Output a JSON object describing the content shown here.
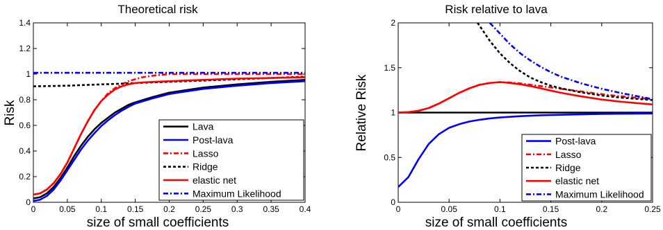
{
  "chart_data": [
    {
      "type": "line",
      "title": "Theoretical risk",
      "xlabel": "size of small coefficients",
      "ylabel": "Risk",
      "xlim": [
        0,
        0.4
      ],
      "ylim": [
        0,
        1.4
      ],
      "xticks": [
        "0",
        "0.05",
        "0.1",
        "0.15",
        "0.2",
        "0.25",
        "0.3",
        "0.35",
        "0.4"
      ],
      "yticks": [
        "0",
        "0.2",
        "0.4",
        "0.6",
        "0.8",
        "1",
        "1.2",
        "1.4"
      ],
      "legend_position": "bottom-right",
      "series": [
        {
          "name": "Lava",
          "color": "#000000",
          "dash": "solid",
          "x": [
            0,
            0.01,
            0.02,
            0.03,
            0.04,
            0.05,
            0.06,
            0.07,
            0.08,
            0.09,
            0.1,
            0.11,
            0.12,
            0.13,
            0.14,
            0.15,
            0.175,
            0.2,
            0.25,
            0.3,
            0.35,
            0.4
          ],
          "y": [
            0.03,
            0.04,
            0.07,
            0.12,
            0.19,
            0.27,
            0.36,
            0.44,
            0.51,
            0.57,
            0.62,
            0.66,
            0.7,
            0.73,
            0.76,
            0.78,
            0.82,
            0.855,
            0.895,
            0.92,
            0.94,
            0.955
          ]
        },
        {
          "name": "Post-lava",
          "color": "#0000ff",
          "dash": "solid",
          "x": [
            0,
            0.01,
            0.02,
            0.03,
            0.04,
            0.05,
            0.06,
            0.07,
            0.08,
            0.09,
            0.1,
            0.11,
            0.12,
            0.13,
            0.14,
            0.15,
            0.175,
            0.2,
            0.25,
            0.3,
            0.35,
            0.4
          ],
          "y": [
            0.01,
            0.02,
            0.05,
            0.1,
            0.17,
            0.25,
            0.33,
            0.41,
            0.48,
            0.54,
            0.595,
            0.64,
            0.68,
            0.715,
            0.745,
            0.77,
            0.81,
            0.845,
            0.885,
            0.91,
            0.93,
            0.945
          ]
        },
        {
          "name": "Lasso",
          "color": "#ff0000",
          "dash": "dashdot",
          "x": [
            0,
            0.01,
            0.02,
            0.03,
            0.04,
            0.05,
            0.06,
            0.07,
            0.08,
            0.09,
            0.1,
            0.11,
            0.12,
            0.13,
            0.14,
            0.15,
            0.16,
            0.18,
            0.2,
            0.25,
            0.3,
            0.35,
            0.4
          ],
          "y": [
            0.06,
            0.07,
            0.1,
            0.15,
            0.22,
            0.31,
            0.42,
            0.53,
            0.63,
            0.72,
            0.79,
            0.85,
            0.89,
            0.92,
            0.945,
            0.96,
            0.975,
            0.99,
            1.0,
            1.0,
            1.0,
            1.0,
            1.0
          ]
        },
        {
          "name": "Ridge",
          "color": "#000000",
          "dash": "dotted",
          "x": [
            0,
            0.025,
            0.05,
            0.075,
            0.1,
            0.125,
            0.15,
            0.175,
            0.2,
            0.25,
            0.3,
            0.35,
            0.4
          ],
          "y": [
            0.905,
            0.907,
            0.91,
            0.915,
            0.92,
            0.925,
            0.93,
            0.935,
            0.94,
            0.95,
            0.96,
            0.97,
            0.98
          ]
        },
        {
          "name": "elastic net",
          "color": "#ff0000",
          "dash": "solid",
          "x": [
            0,
            0.01,
            0.02,
            0.03,
            0.04,
            0.05,
            0.06,
            0.07,
            0.08,
            0.09,
            0.1,
            0.11,
            0.12,
            0.13,
            0.14,
            0.15,
            0.16,
            0.18,
            0.2,
            0.25,
            0.3,
            0.35,
            0.4
          ],
          "y": [
            0.06,
            0.07,
            0.1,
            0.15,
            0.22,
            0.31,
            0.42,
            0.53,
            0.63,
            0.72,
            0.79,
            0.84,
            0.88,
            0.905,
            0.92,
            0.93,
            0.935,
            0.94,
            0.945,
            0.955,
            0.965,
            0.97,
            0.975
          ]
        },
        {
          "name": "Maximum Likelihood",
          "color": "#0000ff",
          "dash": "dashdot",
          "x": [
            0,
            0.4
          ],
          "y": [
            1.01,
            1.01
          ]
        }
      ]
    },
    {
      "type": "line",
      "title": "Risk relative to lava",
      "xlabel": "size of small coefficients",
      "ylabel": "Relative Risk",
      "xlim": [
        0,
        0.25
      ],
      "ylim": [
        0,
        2
      ],
      "xticks": [
        "0",
        "0.05",
        "0.1",
        "0.15",
        "0.2",
        "0.25"
      ],
      "yticks": [
        "0",
        "0.5",
        "1",
        "1.5",
        "2"
      ],
      "legend_position": "bottom-right",
      "series": [
        {
          "name": "Lava",
          "color": "#000000",
          "dash": "solid",
          "legend": false,
          "x": [
            0,
            0.25
          ],
          "y": [
            1.0,
            1.0
          ]
        },
        {
          "name": "Post-lava",
          "color": "#0000ff",
          "dash": "solid",
          "x": [
            0,
            0.01,
            0.02,
            0.03,
            0.04,
            0.05,
            0.06,
            0.07,
            0.08,
            0.09,
            0.1,
            0.12,
            0.14,
            0.16,
            0.18,
            0.2,
            0.25
          ],
          "y": [
            0.17,
            0.28,
            0.48,
            0.65,
            0.76,
            0.83,
            0.87,
            0.9,
            0.92,
            0.935,
            0.945,
            0.96,
            0.97,
            0.975,
            0.98,
            0.985,
            0.99
          ]
        },
        {
          "name": "Lasso",
          "color": "#ff0000",
          "dash": "dashdot",
          "x": [
            0,
            0.01,
            0.02,
            0.03,
            0.04,
            0.05,
            0.06,
            0.07,
            0.08,
            0.09,
            0.1,
            0.11,
            0.12,
            0.13,
            0.14,
            0.15,
            0.16,
            0.18,
            0.2,
            0.22,
            0.25
          ],
          "y": [
            1.0,
            1.005,
            1.02,
            1.05,
            1.1,
            1.16,
            1.22,
            1.27,
            1.31,
            1.33,
            1.34,
            1.335,
            1.325,
            1.31,
            1.295,
            1.28,
            1.265,
            1.235,
            1.205,
            1.18,
            1.15
          ]
        },
        {
          "name": "Ridge",
          "color": "#000000",
          "dash": "dotted",
          "x": [
            0.078,
            0.09,
            0.1,
            0.11,
            0.12,
            0.13,
            0.14,
            0.15,
            0.16,
            0.18,
            0.2,
            0.22,
            0.25
          ],
          "y": [
            2.0,
            1.8,
            1.66,
            1.55,
            1.46,
            1.39,
            1.34,
            1.3,
            1.27,
            1.225,
            1.19,
            1.165,
            1.14
          ]
        },
        {
          "name": "elastic net",
          "color": "#ff0000",
          "dash": "solid",
          "x": [
            0,
            0.01,
            0.02,
            0.03,
            0.04,
            0.05,
            0.06,
            0.07,
            0.08,
            0.09,
            0.1,
            0.11,
            0.12,
            0.13,
            0.14,
            0.15,
            0.16,
            0.18,
            0.2,
            0.22,
            0.25
          ],
          "y": [
            1.0,
            1.005,
            1.02,
            1.05,
            1.1,
            1.16,
            1.22,
            1.27,
            1.31,
            1.33,
            1.34,
            1.33,
            1.315,
            1.295,
            1.27,
            1.245,
            1.22,
            1.18,
            1.145,
            1.12,
            1.09
          ]
        },
        {
          "name": "Maximum Likelihood",
          "color": "#0000ff",
          "dash": "dashdot",
          "x": [
            0.09,
            0.1,
            0.11,
            0.12,
            0.13,
            0.14,
            0.15,
            0.16,
            0.18,
            0.2,
            0.22,
            0.25
          ],
          "y": [
            2.0,
            1.88,
            1.76,
            1.66,
            1.58,
            1.51,
            1.45,
            1.4,
            1.325,
            1.265,
            1.215,
            1.15
          ]
        }
      ]
    }
  ]
}
